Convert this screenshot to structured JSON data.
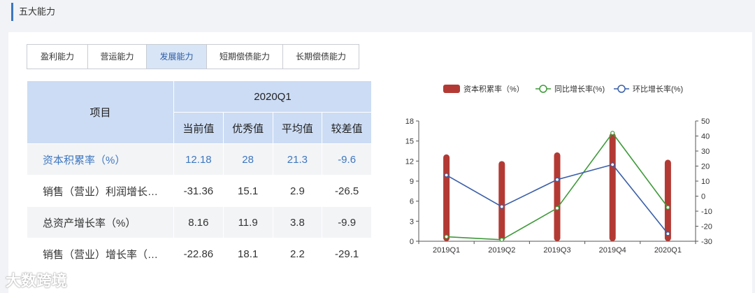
{
  "section": {
    "title": "五大能力"
  },
  "tabs": [
    {
      "label": "盈利能力",
      "active": false
    },
    {
      "label": "营运能力",
      "active": false
    },
    {
      "label": "发展能力",
      "active": true
    },
    {
      "label": "短期偿债能力",
      "active": false
    },
    {
      "label": "长期偿债能力",
      "active": false
    }
  ],
  "table": {
    "item_header": "项目",
    "period_header": "2020Q1",
    "sub_headers": [
      "当前值",
      "优秀值",
      "平均值",
      "较差值"
    ],
    "rows": [
      {
        "name": "资本积累率（%）",
        "values": [
          "12.18",
          "28",
          "21.3",
          "-9.6"
        ]
      },
      {
        "name": "销售（营业）利润增长…",
        "values": [
          "-31.36",
          "15.1",
          "2.9",
          "-26.5"
        ]
      },
      {
        "name": "总资产增长率（%）",
        "values": [
          "8.16",
          "11.9",
          "3.8",
          "-9.9"
        ]
      },
      {
        "name": "销售（营业）增长率（…",
        "values": [
          "-22.86",
          "18.1",
          "2.2",
          "-29.1"
        ]
      }
    ]
  },
  "watermark": "大数跨境",
  "chart_data": {
    "type": "bar",
    "categories": [
      "2019Q1",
      "2019Q2",
      "2019Q3",
      "2019Q4",
      "2020Q1"
    ],
    "legend": {
      "placement": "top"
    },
    "y_left": {
      "ticks": [
        0,
        3,
        6,
        9,
        12,
        15,
        18
      ],
      "ylim": [
        0,
        18
      ]
    },
    "y_right": {
      "ticks": [
        -30,
        -20,
        -10,
        0,
        10,
        20,
        30,
        40,
        50
      ],
      "ylim": [
        -30,
        50
      ]
    },
    "series": [
      {
        "name": "资本积累率（%）",
        "kind": "bar",
        "axis": "left",
        "color": "#b33a34",
        "values": [
          13,
          12,
          13.3,
          16.2,
          12.2
        ]
      },
      {
        "name": "同比增长率(%)",
        "kind": "line",
        "axis": "right",
        "color": "#3e9a3a",
        "values": [
          -27,
          -29,
          -8,
          42,
          -7.5
        ]
      },
      {
        "name": "环比增长率(%)",
        "kind": "line",
        "axis": "right",
        "color": "#3a5fa8",
        "values": [
          14,
          -7,
          11,
          21,
          -25
        ]
      }
    ]
  }
}
